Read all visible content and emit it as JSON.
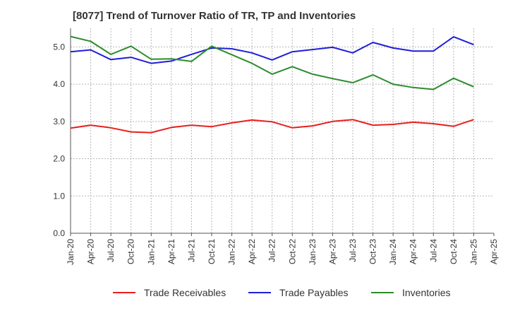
{
  "chart_data": {
    "type": "line",
    "title": "[8077]  Trend of Turnover Ratio of TR, TP and Inventories",
    "xlabel": "",
    "ylabel": "",
    "ylim": [
      0,
      5.5
    ],
    "yticks": [
      "0.0",
      "1.0",
      "2.0",
      "3.0",
      "4.0",
      "5.0"
    ],
    "ytick_values": [
      0,
      1,
      2,
      3,
      4,
      5
    ],
    "x_tick_labels": [
      "Jan-20",
      "Apr-20",
      "Jul-20",
      "Oct-20",
      "Jan-21",
      "Apr-21",
      "Jul-21",
      "Oct-21",
      "Jan-22",
      "Apr-22",
      "Jul-22",
      "Oct-22",
      "Jan-23",
      "Apr-23",
      "Jul-23",
      "Oct-23",
      "Jan-24",
      "Apr-24",
      "Jul-24",
      "Oct-24",
      "Jan-25",
      "Apr-25"
    ],
    "x": [
      "Jan-20",
      "Apr-20",
      "Jul-20",
      "Oct-20",
      "Jan-21",
      "Apr-21",
      "Jul-21",
      "Oct-21",
      "Jan-22",
      "Apr-22",
      "Jul-22",
      "Oct-22",
      "Jan-23",
      "Apr-23",
      "Jul-23",
      "Oct-23",
      "Jan-24",
      "Apr-24",
      "Jul-24",
      "Oct-24",
      "Jan-25"
    ],
    "grid": true,
    "legend_position": "bottom",
    "series": [
      {
        "name": "Trade Receivables",
        "color": "#e8201e",
        "values": [
          2.82,
          2.9,
          2.83,
          2.72,
          2.7,
          2.84,
          2.9,
          2.86,
          2.96,
          3.04,
          2.99,
          2.83,
          2.88,
          3.0,
          3.05,
          2.9,
          2.92,
          2.98,
          2.94,
          2.87,
          3.05
        ]
      },
      {
        "name": "Trade Payables",
        "color": "#1f1fd6",
        "values": [
          4.87,
          4.92,
          4.66,
          4.72,
          4.56,
          4.62,
          4.8,
          4.97,
          4.95,
          4.84,
          4.65,
          4.87,
          4.93,
          4.99,
          4.84,
          5.12,
          4.97,
          4.89,
          4.89,
          5.27,
          5.06
        ]
      },
      {
        "name": "Inventories",
        "color": "#2c8c2c",
        "values": [
          5.28,
          5.15,
          4.8,
          5.02,
          4.67,
          4.68,
          4.61,
          5.02,
          4.79,
          4.56,
          4.27,
          4.47,
          4.27,
          4.15,
          4.04,
          4.25,
          4.0,
          3.91,
          3.86,
          4.16,
          3.93
        ]
      }
    ]
  }
}
